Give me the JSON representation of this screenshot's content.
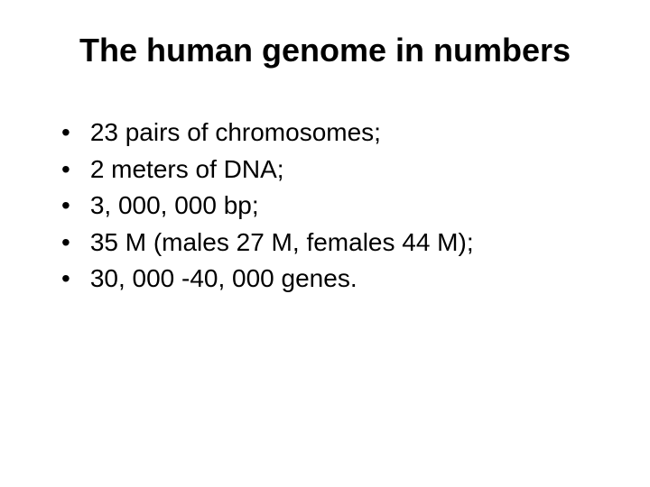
{
  "slide": {
    "title": "The human genome in numbers",
    "bullets": [
      "23 pairs of chromosomes;",
      "2 meters of DNA;",
      "3, 000, 000 bp;",
      "35 M (males 27 M, females 44 M);",
      "30, 000 -40, 000 genes."
    ],
    "background_color": "#ffffff",
    "text_color": "#000000",
    "title_fontsize": 36,
    "body_fontsize": 28,
    "font_family": "Arial"
  }
}
